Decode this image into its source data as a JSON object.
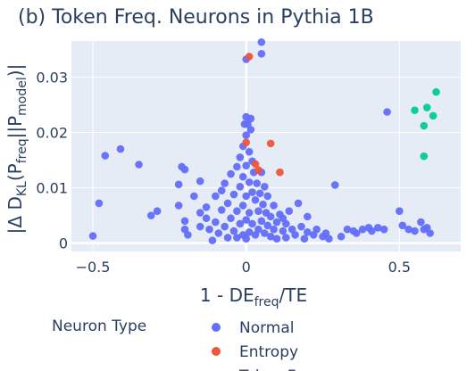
{
  "chart_data": {
    "type": "scatter",
    "title": "(b) Token Freq. Neurons in Pythia 1B",
    "xlabel": {
      "base": "1 - DE",
      "sub": "freq",
      "tail": "/TE"
    },
    "ylabel": {
      "pre": "|Δ D",
      "sub1": "KL",
      "mid1": "(P",
      "sub2": "freq",
      "mid2": "||P",
      "sub3": "model",
      "tail": ")|"
    },
    "xlim": [
      -0.57,
      0.7
    ],
    "ylim": [
      -0.0015,
      0.0365
    ],
    "xticks": [
      -0.5,
      0,
      0.5
    ],
    "xtick_labels": [
      "−0.5",
      "0",
      "0.5"
    ],
    "yticks": [
      0,
      0.01,
      0.02,
      0.03
    ],
    "ytick_labels": [
      "0",
      "0.01",
      "0.02",
      "0.03"
    ],
    "grid": true,
    "legend": {
      "title": "Neuron Type",
      "placement": "bottom"
    },
    "series": [
      {
        "name": "Normal",
        "color": "#636efa",
        "points": [
          [
            -0.5,
            0.0013
          ],
          [
            -0.48,
            0.0072
          ],
          [
            -0.46,
            0.0158
          ],
          [
            -0.41,
            0.017
          ],
          [
            -0.35,
            0.0142
          ],
          [
            -0.31,
            0.005
          ],
          [
            -0.29,
            0.0058
          ],
          [
            -0.21,
            0.0138
          ],
          [
            -0.2,
            0.0133
          ],
          [
            -0.22,
            0.0106
          ],
          [
            -0.22,
            0.0068
          ],
          [
            -0.2,
            0.004
          ],
          [
            -0.2,
            0.0025
          ],
          [
            -0.19,
            0.0015
          ],
          [
            -0.17,
            0.0085
          ],
          [
            -0.15,
            0.0112
          ],
          [
            -0.15,
            0.0055
          ],
          [
            -0.15,
            0.003
          ],
          [
            -0.13,
            0.0065
          ],
          [
            -0.13,
            0.0045
          ],
          [
            -0.12,
            0.0025
          ],
          [
            -0.11,
            0.0005
          ],
          [
            -0.1,
            0.0085
          ],
          [
            -0.1,
            0.0038
          ],
          [
            -0.09,
            0.0018
          ],
          [
            -0.08,
            0.0095
          ],
          [
            -0.08,
            0.006
          ],
          [
            -0.07,
            0.0108
          ],
          [
            -0.07,
            0.003
          ],
          [
            -0.06,
            0.0072
          ],
          [
            -0.06,
            0.001
          ],
          [
            -0.05,
            0.0125
          ],
          [
            -0.05,
            0.0045
          ],
          [
            -0.04,
            0.0088
          ],
          [
            -0.04,
            0.0022
          ],
          [
            -0.03,
            0.0138
          ],
          [
            -0.03,
            0.0058
          ],
          [
            -0.03,
            0.001
          ],
          [
            -0.02,
            0.0155
          ],
          [
            -0.02,
            0.0102
          ],
          [
            -0.02,
            0.0035
          ],
          [
            -0.01,
            0.0175
          ],
          [
            -0.01,
            0.012
          ],
          [
            -0.01,
            0.0068
          ],
          [
            -0.01,
            0.0015
          ],
          [
            0.0,
            0.0228
          ],
          [
            0.0,
            0.0195
          ],
          [
            0.0,
            0.014
          ],
          [
            0.0,
            0.0085
          ],
          [
            0.0,
            0.0042
          ],
          [
            0.0,
            0.0008
          ],
          [
            0.005,
            0.0215
          ],
          [
            0.01,
            0.0165
          ],
          [
            0.01,
            0.011
          ],
          [
            0.01,
            0.0055
          ],
          [
            0.01,
            0.002
          ],
          [
            0.015,
            0.0205
          ],
          [
            0.02,
            0.0148
          ],
          [
            0.02,
            0.0092
          ],
          [
            0.02,
            0.0035
          ],
          [
            0.025,
            0.0128
          ],
          [
            0.03,
            0.0078
          ],
          [
            0.03,
            0.0015
          ],
          [
            0.035,
            0.0108
          ],
          [
            0.04,
            0.0058
          ],
          [
            0.04,
            0.0025
          ],
          [
            0.045,
            0.009
          ],
          [
            0.05,
            0.0128
          ],
          [
            0.05,
            0.004
          ],
          [
            0.055,
            0.007
          ],
          [
            0.06,
            0.0102
          ],
          [
            0.06,
            0.0018
          ],
          [
            0.065,
            0.0055
          ],
          [
            0.07,
            0.0085
          ],
          [
            0.07,
            0.0032
          ],
          [
            0.08,
            0.0048
          ],
          [
            0.08,
            0.0012
          ],
          [
            0.09,
            0.0068
          ],
          [
            0.09,
            0.0025
          ],
          [
            0.1,
            0.0038
          ],
          [
            0.1,
            0.0008
          ],
          [
            0.11,
            0.0052
          ],
          [
            0.12,
            0.0022
          ],
          [
            0.12,
            0.0045
          ],
          [
            0.13,
            0.0035
          ],
          [
            0.13,
            0.001
          ],
          [
            0.14,
            0.0058
          ],
          [
            0.15,
            0.0025
          ],
          [
            0.16,
            0.0015
          ],
          [
            0.17,
            0.0072
          ],
          [
            0.18,
            0.003
          ],
          [
            0.19,
            0.0008
          ],
          [
            0.2,
            0.0048
          ],
          [
            0.2,
            0.002
          ],
          [
            0.22,
            0.0015
          ],
          [
            0.23,
            0.0025
          ],
          [
            0.25,
            0.0012
          ],
          [
            0.26,
            0.0018
          ],
          [
            0.27,
            0.0008
          ],
          [
            0.29,
            0.0105
          ],
          [
            0.31,
            0.0012
          ],
          [
            0.33,
            0.0025
          ],
          [
            0.35,
            0.0022
          ],
          [
            0.36,
            0.0018
          ],
          [
            0.38,
            0.0025
          ],
          [
            0.4,
            0.0028
          ],
          [
            0.41,
            0.0022
          ],
          [
            0.43,
            0.0028
          ],
          [
            0.45,
            0.0025
          ],
          [
            0.46,
            0.0237
          ],
          [
            0.5,
            0.0058
          ],
          [
            0.51,
            0.0032
          ],
          [
            0.53,
            0.0025
          ],
          [
            0.55,
            0.0022
          ],
          [
            0.57,
            0.0038
          ],
          [
            0.58,
            0.0025
          ],
          [
            0.59,
            0.0028
          ],
          [
            0.6,
            0.0018
          ],
          [
            0.0,
            0.0332
          ],
          [
            0.05,
            0.0363
          ],
          [
            0.05,
            0.0342
          ],
          [
            -0.005,
            0.0215
          ],
          [
            0.015,
            0.0225
          ]
        ]
      },
      {
        "name": "Entropy",
        "color": "#ef553b",
        "points": [
          [
            0.01,
            0.0337
          ],
          [
            0.0,
            0.0182
          ],
          [
            0.03,
            0.0143
          ],
          [
            0.04,
            0.0132
          ],
          [
            0.08,
            0.018
          ],
          [
            0.11,
            0.0128
          ]
        ]
      },
      {
        "name": "Token Frequency",
        "color": "#00cc96",
        "points": [
          [
            0.62,
            0.0273
          ],
          [
            0.55,
            0.024
          ],
          [
            0.59,
            0.0245
          ],
          [
            0.61,
            0.023
          ],
          [
            0.58,
            0.0212
          ],
          [
            0.58,
            0.0157
          ]
        ]
      }
    ]
  }
}
